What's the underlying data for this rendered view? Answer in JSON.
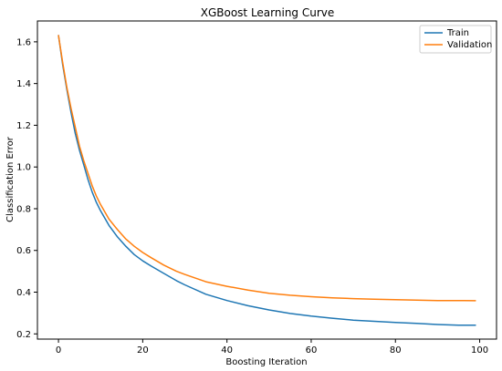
{
  "chart_data": {
    "type": "line",
    "title": "XGBoost Learning Curve",
    "xlabel": "Boosting Iteration",
    "ylabel": "Classification Error",
    "xlim": [
      -5,
      104
    ],
    "ylim": [
      0.175,
      1.7
    ],
    "xticks": [
      0,
      20,
      40,
      60,
      80,
      100
    ],
    "yticks": [
      0.2,
      0.4,
      0.6,
      0.8,
      1.0,
      1.2,
      1.4,
      1.6
    ],
    "xtick_labels": [
      "0",
      "20",
      "40",
      "60",
      "80",
      "100"
    ],
    "ytick_labels": [
      "0.2",
      "0.4",
      "0.6",
      "0.8",
      "1.0",
      "1.2",
      "1.4",
      "1.6"
    ],
    "grid": false,
    "legend_position": "top-right",
    "series": [
      {
        "name": "Train",
        "color": "#1f77b4",
        "x": [
          0,
          1,
          2,
          3,
          4,
          5,
          6,
          7,
          8,
          9,
          10,
          12,
          14,
          16,
          18,
          20,
          22,
          25,
          28,
          30,
          35,
          40,
          45,
          50,
          55,
          60,
          65,
          70,
          75,
          80,
          85,
          90,
          95,
          99
        ],
        "y": [
          1.63,
          1.49,
          1.37,
          1.26,
          1.16,
          1.08,
          1.01,
          0.94,
          0.88,
          0.83,
          0.79,
          0.72,
          0.665,
          0.62,
          0.58,
          0.55,
          0.525,
          0.49,
          0.455,
          0.435,
          0.39,
          0.36,
          0.335,
          0.315,
          0.298,
          0.285,
          0.275,
          0.266,
          0.26,
          0.255,
          0.25,
          0.245,
          0.242,
          0.242
        ]
      },
      {
        "name": "Validation",
        "color": "#ff7f0e",
        "x": [
          0,
          1,
          2,
          3,
          4,
          5,
          6,
          7,
          8,
          9,
          10,
          12,
          14,
          16,
          18,
          20,
          22,
          25,
          28,
          30,
          35,
          40,
          45,
          50,
          55,
          60,
          65,
          70,
          75,
          80,
          85,
          90,
          95,
          99
        ],
        "y": [
          1.63,
          1.5,
          1.38,
          1.28,
          1.19,
          1.1,
          1.03,
          0.97,
          0.91,
          0.86,
          0.82,
          0.75,
          0.7,
          0.655,
          0.62,
          0.59,
          0.565,
          0.53,
          0.5,
          0.485,
          0.45,
          0.428,
          0.41,
          0.395,
          0.385,
          0.378,
          0.373,
          0.369,
          0.366,
          0.364,
          0.362,
          0.36,
          0.36,
          0.359
        ]
      }
    ]
  }
}
